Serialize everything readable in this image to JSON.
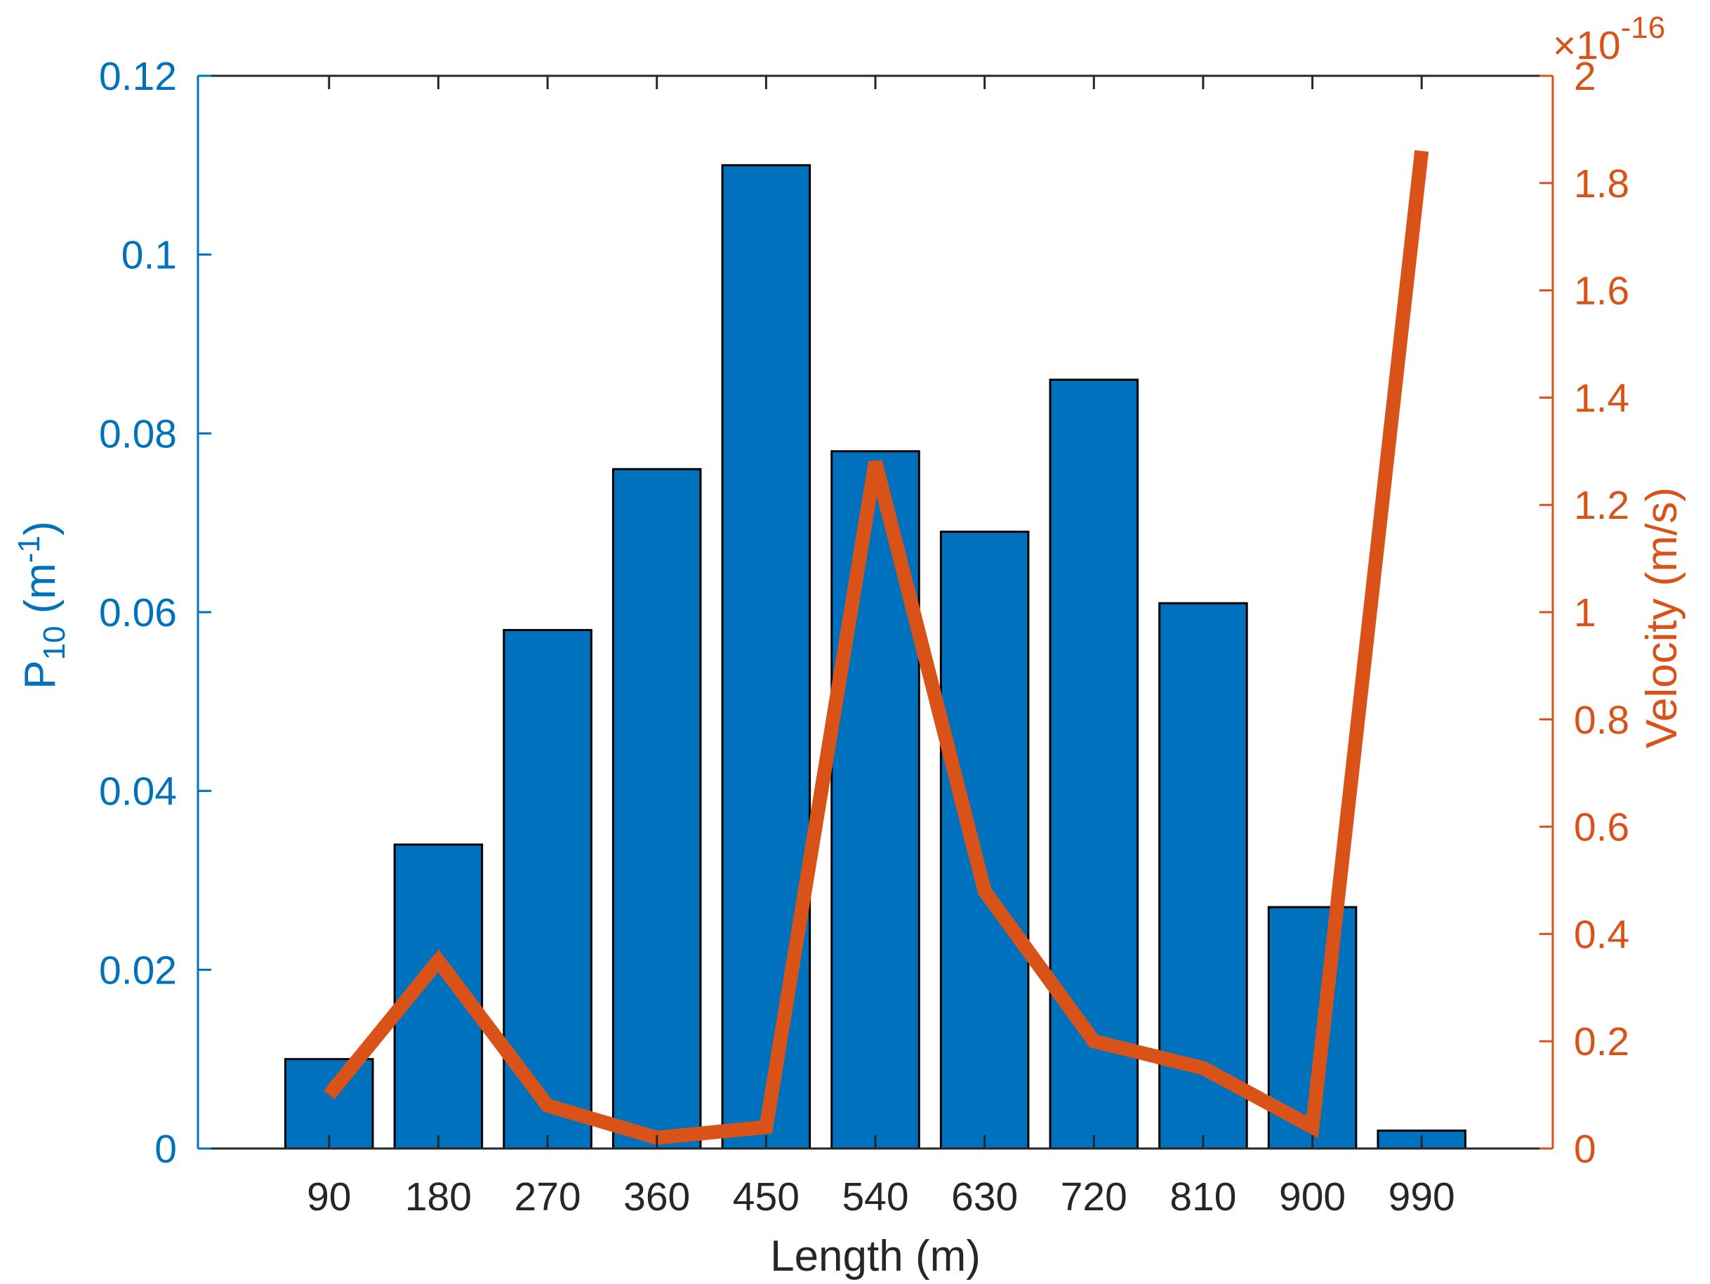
{
  "chart_data": {
    "type": "bar",
    "categories": [
      "90",
      "180",
      "270",
      "360",
      "450",
      "540",
      "630",
      "720",
      "810",
      "900",
      "990"
    ],
    "series": [
      {
        "type": "bar",
        "axis": "left",
        "values": [
          0.01,
          0.034,
          0.058,
          0.076,
          0.11,
          0.078,
          0.069,
          0.086,
          0.061,
          0.027,
          0.002
        ]
      },
      {
        "type": "line",
        "axis": "right",
        "values": [
          0.1,
          0.35,
          0.08,
          0.02,
          0.04,
          1.28,
          0.48,
          0.2,
          0.15,
          0.04,
          1.86
        ]
      }
    ],
    "xlabel": "Length (m)",
    "ylabel_left": {
      "base": "P",
      "sub": "10",
      "unit_open": " (m",
      "sup": "-1",
      "unit_close": ")"
    },
    "ylabel_right": "Velocity (m/s)",
    "ylim_left": [
      0,
      0.12
    ],
    "yticks_left": [
      "0",
      "0.02",
      "0.04",
      "0.06",
      "0.08",
      "0.1",
      "0.12"
    ],
    "ylim_right": [
      0,
      2
    ],
    "yticks_right": [
      "0",
      "0.2",
      "0.4",
      "0.6",
      "0.8",
      "1",
      "1.2",
      "1.4",
      "1.6",
      "1.8",
      "2"
    ],
    "right_exponent": {
      "prefix": "×10",
      "power": "-16"
    },
    "grid": false,
    "colors": {
      "bar": "#0072BD",
      "line": "#D95319",
      "left_axis": "#0072BD",
      "right_axis": "#D95319",
      "x_axis": "#262626"
    }
  }
}
